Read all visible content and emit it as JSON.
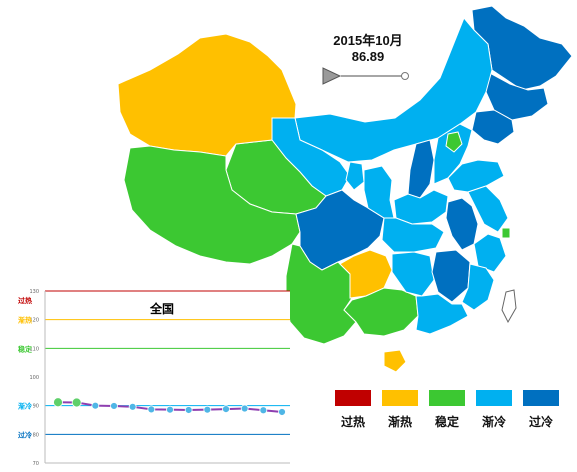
{
  "timeline": {
    "period": "2015年10月",
    "value": "86.89"
  },
  "colors": {
    "overheat": "#c00000",
    "warming": "#ffc000",
    "stable": "#3cc832",
    "cooling": "#00b0f0",
    "overcool": "#0070c0"
  },
  "legend": [
    {
      "label": "过热",
      "color": "#c00000"
    },
    {
      "label": "渐热",
      "color": "#ffc000"
    },
    {
      "label": "稳定",
      "color": "#3cc832"
    },
    {
      "label": "渐冷",
      "color": "#00b0f0"
    },
    {
      "label": "过冷",
      "color": "#0070c0"
    }
  ],
  "chart_data": {
    "type": "line",
    "title": "全国",
    "ylim": [
      70,
      130
    ],
    "y_ticks": [
      "130",
      "120",
      "110",
      "100",
      "90",
      "80",
      "70"
    ],
    "bands": [
      {
        "label": "过热",
        "value": 130,
        "color": "#c00000"
      },
      {
        "label": "渐热",
        "value": 120,
        "color": "#ffc000"
      },
      {
        "label": "稳定",
        "value": 110,
        "color": "#3cc832"
      },
      {
        "label": "渐冷",
        "value": 90,
        "color": "#00b0f0"
      },
      {
        "label": "过冷",
        "value": 80,
        "color": "#0070c0"
      }
    ],
    "series": [
      {
        "values": [
          91.2,
          91.1,
          90.0,
          89.9,
          89.6,
          88.7,
          88.6,
          88.5,
          88.6,
          88.8,
          89.0,
          88.4,
          87.8
        ]
      }
    ]
  }
}
